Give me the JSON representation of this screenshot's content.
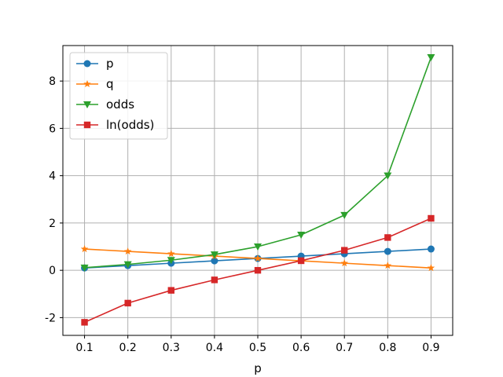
{
  "chart_data": {
    "type": "line",
    "title": "",
    "xlabel": "p",
    "ylabel": "",
    "x": [
      0.1,
      0.2,
      0.3,
      0.4,
      0.5,
      0.6,
      0.7,
      0.8,
      0.9
    ],
    "x_ticks": [
      "0.1",
      "0.2",
      "0.3",
      "0.4",
      "0.5",
      "0.6",
      "0.7",
      "0.8",
      "0.9"
    ],
    "y_ticks": [
      -2,
      0,
      2,
      4,
      6,
      8
    ],
    "xlim": [
      0.05,
      0.95
    ],
    "ylim": [
      -2.75,
      9.5
    ],
    "grid": true,
    "legend_position": "top-left",
    "series": [
      {
        "name": "p",
        "color": "#1f77b4",
        "marker": "circle",
        "values": [
          0.1,
          0.2,
          0.3,
          0.4,
          0.5,
          0.6,
          0.7,
          0.8,
          0.9
        ]
      },
      {
        "name": "q",
        "color": "#ff7f0e",
        "marker": "star",
        "values": [
          0.9,
          0.8,
          0.7,
          0.6,
          0.5,
          0.4,
          0.3,
          0.2,
          0.1
        ]
      },
      {
        "name": "odds",
        "color": "#2ca02c",
        "marker": "triangle-down",
        "values": [
          0.111,
          0.25,
          0.429,
          0.667,
          1.0,
          1.5,
          2.333,
          4.0,
          9.0
        ]
      },
      {
        "name": "ln(odds)",
        "color": "#d62728",
        "marker": "square",
        "values": [
          -2.197,
          -1.386,
          -0.847,
          -0.405,
          0.0,
          0.405,
          0.847,
          1.386,
          2.197
        ]
      }
    ]
  }
}
